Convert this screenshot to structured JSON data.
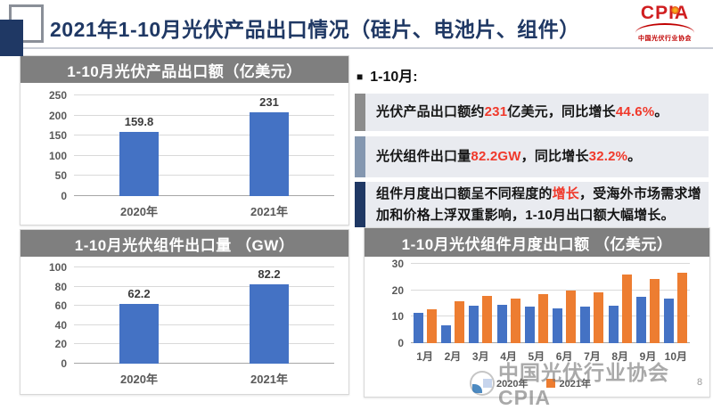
{
  "page": {
    "number": "8"
  },
  "header": {
    "title": "2021年1-10月光伏产品出口情况（硅片、电池片、组件）",
    "logo": {
      "text": "CPIA",
      "subtext": "中国光伏行业协会"
    }
  },
  "insights": {
    "marker": "■",
    "heading": "1-10月:",
    "items": [
      {
        "accent_color": "#8C8C8C",
        "segments": [
          {
            "text": "光伏产品出口额约",
            "highlight": false
          },
          {
            "text": "231",
            "highlight": true
          },
          {
            "text": "亿美元，同比增长",
            "highlight": false
          },
          {
            "text": "44.6%",
            "highlight": true
          },
          {
            "text": "。",
            "highlight": false
          }
        ]
      },
      {
        "accent_color": "#8497B0",
        "segments": [
          {
            "text": "光伏组件出口量",
            "highlight": false
          },
          {
            "text": "82.2GW",
            "highlight": true
          },
          {
            "text": "，同比增长",
            "highlight": false
          },
          {
            "text": "32.2%",
            "highlight": true
          },
          {
            "text": "。",
            "highlight": false
          }
        ]
      },
      {
        "accent_color": "#1F3864",
        "segments": [
          {
            "text": "组件月度出口额呈不同程度的",
            "highlight": false
          },
          {
            "text": "增长",
            "highlight": true
          },
          {
            "text": "，受海外市场需求增加和价格上浮双重影响，1-10月出口额大幅增长。",
            "highlight": false
          }
        ]
      }
    ]
  },
  "watermark": {
    "text": "中国光伏行业协会CPIA"
  },
  "colors": {
    "title_navy": "#1F3864",
    "panel_header_gray": "#7F7F7F",
    "bar_blue": "#4472C4",
    "bar_orange": "#ED7D31",
    "highlight_red": "#F0392B"
  },
  "chart_data": [
    {
      "type": "bar",
      "title": "1-10月光伏产品出口额（亿美元）",
      "categories": [
        "2020年",
        "2021年"
      ],
      "values": [
        159.8,
        231
      ],
      "labels": [
        "159.8",
        "231"
      ],
      "ylim": [
        0,
        250
      ],
      "yticks": [
        0,
        50,
        100,
        150,
        200,
        250
      ],
      "bar_color": "#4472C4",
      "grid": true,
      "legend": false
    },
    {
      "type": "bar",
      "title": "1-10月光伏组件出口量 （GW）",
      "categories": [
        "2020年",
        "2021年"
      ],
      "values": [
        62.2,
        82.2
      ],
      "labels": [
        "62.2",
        "82.2"
      ],
      "ylim": [
        0,
        100
      ],
      "yticks": [
        0,
        20,
        40,
        60,
        80,
        100
      ],
      "bar_color": "#4472C4",
      "grid": true,
      "legend": false
    },
    {
      "type": "bar",
      "title": "1-10月光伏组件月度出口额 （亿美元）",
      "categories": [
        "1月",
        "2月",
        "3月",
        "4月",
        "5月",
        "6月",
        "7月",
        "8月",
        "9月",
        "10月"
      ],
      "series": [
        {
          "name": "2020年",
          "color": "#4472C4",
          "values": [
            11.5,
            6.7,
            14.3,
            14.5,
            13.8,
            13.1,
            13.7,
            14.2,
            17.5,
            17.0
          ]
        },
        {
          "name": "2021年",
          "color": "#ED7D31",
          "values": [
            12.8,
            16.0,
            17.8,
            16.7,
            18.5,
            20.0,
            19.2,
            26.0,
            24.3,
            26.8
          ]
        }
      ],
      "ylim": [
        0,
        30
      ],
      "yticks": [
        0,
        10,
        20,
        30
      ],
      "grid": true,
      "legend": true,
      "legend_position": "bottom"
    }
  ]
}
